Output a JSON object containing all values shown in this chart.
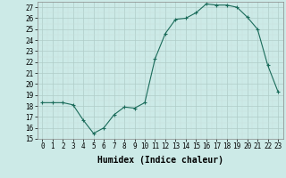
{
  "x": [
    0,
    1,
    2,
    3,
    4,
    5,
    6,
    7,
    8,
    9,
    10,
    11,
    12,
    13,
    14,
    15,
    16,
    17,
    18,
    19,
    20,
    21,
    22,
    23
  ],
  "y": [
    18.3,
    18.3,
    18.3,
    18.1,
    16.7,
    15.5,
    16.0,
    17.2,
    17.9,
    17.8,
    18.3,
    22.3,
    24.6,
    25.9,
    26.0,
    26.5,
    27.3,
    27.2,
    27.2,
    27.0,
    26.1,
    25.0,
    21.7,
    19.3
  ],
  "line_color": "#1a6b5a",
  "marker": "+",
  "marker_size": 3.5,
  "bg_color": "#cceae7",
  "grid_color_major": "#b8d8d4",
  "grid_color_minor": "#d4ecea",
  "xlim": [
    -0.5,
    23.5
  ],
  "ylim": [
    15,
    27.5
  ],
  "yticks": [
    15,
    16,
    17,
    18,
    19,
    20,
    21,
    22,
    23,
    24,
    25,
    26,
    27
  ],
  "xticks": [
    0,
    1,
    2,
    3,
    4,
    5,
    6,
    7,
    8,
    9,
    10,
    11,
    12,
    13,
    14,
    15,
    16,
    17,
    18,
    19,
    20,
    21,
    22,
    23
  ],
  "tick_fontsize": 5.5,
  "xlabel": "Humidex (Indice chaleur)",
  "xlabel_fontsize": 7,
  "xlabel_fontweight": "bold"
}
